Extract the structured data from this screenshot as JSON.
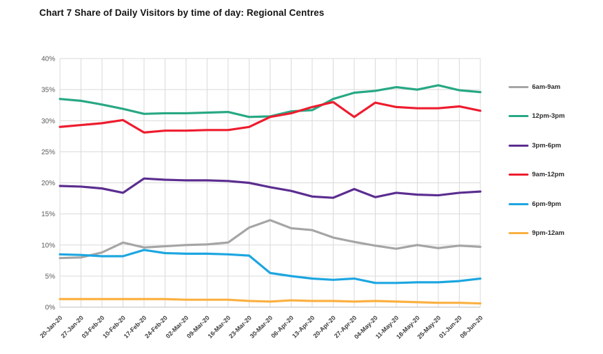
{
  "page": {
    "background": "#FFFFFF"
  },
  "chart": {
    "title": "Chart 7 Share of Daily Visitors by time of day: Regional Centres"
  },
  "chart_data": {
    "type": "line",
    "title": "Chart 7 Share of Daily Visitors by time of day: Regional Centres",
    "xlabel": "",
    "ylabel": "",
    "ylim": [
      0,
      40
    ],
    "ytick_step": 5,
    "ytick_labels": [
      "0%",
      "5%",
      "10%",
      "15%",
      "20%",
      "25%",
      "30%",
      "35%",
      "40%"
    ],
    "grid": true,
    "legend_position": "right",
    "categories": [
      "20-Jan-20",
      "27-Jan-20",
      "03-Feb-20",
      "10-Feb-20",
      "17-Feb-20",
      "24-Feb-20",
      "02-Mar-20",
      "09-Mar-20",
      "16-Mar-20",
      "23-Mar-20",
      "30-Mar-20",
      "06-Apr-20",
      "13-Apr-20",
      "20-Apr-20",
      "27-Apr-20",
      "04-May-20",
      "11-May-20",
      "18-May-20",
      "25-May-20",
      "01-Jun-20",
      "08-Jun-20"
    ],
    "series": [
      {
        "name": "6am-9am",
        "color": "#A5A5A5",
        "values": [
          7.9,
          8.0,
          8.8,
          10.4,
          9.6,
          9.8,
          10.0,
          10.1,
          10.4,
          12.8,
          14.0,
          12.7,
          12.4,
          11.2,
          10.5,
          9.9,
          9.4,
          10.0,
          9.5,
          9.9,
          9.7
        ]
      },
      {
        "name": "12pm-3pm",
        "color": "#27A884",
        "values": [
          33.5,
          33.2,
          32.6,
          31.9,
          31.1,
          31.2,
          31.2,
          31.3,
          31.4,
          30.6,
          30.7,
          31.5,
          31.7,
          33.5,
          34.5,
          34.8,
          35.4,
          35.0,
          35.7,
          34.9,
          34.6
        ]
      },
      {
        "name": "3pm-6pm",
        "color": "#5B2D90",
        "values": [
          19.5,
          19.4,
          19.1,
          18.4,
          20.7,
          20.5,
          20.4,
          20.4,
          20.3,
          20.0,
          19.3,
          18.7,
          17.8,
          17.6,
          19.0,
          17.7,
          18.4,
          18.1,
          18.0,
          18.4,
          18.6
        ]
      },
      {
        "name": "9am-12pm",
        "color": "#EE1C2E",
        "values": [
          29.0,
          29.3,
          29.6,
          30.1,
          28.1,
          28.4,
          28.4,
          28.5,
          28.5,
          29.0,
          30.6,
          31.2,
          32.2,
          33.0,
          30.6,
          32.9,
          32.2,
          32.0,
          32.0,
          32.3,
          31.6
        ]
      },
      {
        "name": "6pm-9pm",
        "color": "#1CA6E0",
        "values": [
          8.5,
          8.4,
          8.2,
          8.2,
          9.2,
          8.7,
          8.6,
          8.6,
          8.5,
          8.3,
          5.5,
          5.0,
          4.6,
          4.4,
          4.6,
          3.9,
          3.9,
          4.0,
          4.0,
          4.2,
          4.6
        ]
      },
      {
        "name": "9pm-12am",
        "color": "#FBB040",
        "values": [
          1.3,
          1.3,
          1.3,
          1.3,
          1.3,
          1.3,
          1.2,
          1.2,
          1.2,
          1.0,
          0.9,
          1.1,
          1.0,
          1.0,
          0.9,
          1.0,
          0.9,
          0.8,
          0.7,
          0.7,
          0.6
        ]
      }
    ]
  }
}
